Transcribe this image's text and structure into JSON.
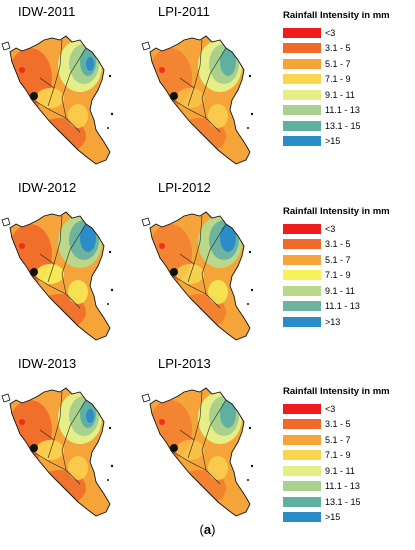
{
  "rows": [
    {
      "maps": [
        {
          "title": "IDW-2011",
          "variant": "idw"
        },
        {
          "title": "LPI-2011",
          "variant": "lpi"
        }
      ],
      "legend": {
        "title": "Rainfall Intensity in mm",
        "items": [
          {
            "label": "<3",
            "color": "#ee1c1c"
          },
          {
            "label": "3.1 - 5",
            "color": "#f06a2a"
          },
          {
            "label": "5.1 - 7",
            "color": "#f5a43a"
          },
          {
            "label": "7.1 - 9",
            "color": "#fbd450"
          },
          {
            "label": "9.1 - 11",
            "color": "#e6ee88"
          },
          {
            "label": "11.1 - 13",
            "color": "#a9d08c"
          },
          {
            "label": "13.1 - 15",
            "color": "#5fb0a0"
          },
          {
            "label": ">15",
            "color": "#2b8dc8"
          }
        ]
      }
    },
    {
      "maps": [
        {
          "title": "IDW-2012",
          "variant": "idw"
        },
        {
          "title": "LPI-2012",
          "variant": "lpi"
        }
      ],
      "legend": {
        "title": "Rainfall Intensity in mm",
        "items": [
          {
            "label": "<3",
            "color": "#ee1c1c"
          },
          {
            "label": "3.1 - 5",
            "color": "#f06a2a"
          },
          {
            "label": "5.1 - 7",
            "color": "#f5a43a"
          },
          {
            "label": "7.1 - 9",
            "color": "#f6f05a"
          },
          {
            "label": "9.1 - 11",
            "color": "#b9d88a"
          },
          {
            "label": "11.1 - 13",
            "color": "#6cb4a0"
          },
          {
            "label": ">13",
            "color": "#2b8dc8"
          }
        ]
      }
    },
    {
      "maps": [
        {
          "title": "IDW-2013",
          "variant": "idw"
        },
        {
          "title": "LPI-2013",
          "variant": "lpi"
        }
      ],
      "legend": {
        "title": "Rainfall Intensity in mm",
        "items": [
          {
            "label": "<3",
            "color": "#ee1c1c"
          },
          {
            "label": "3.1 - 5",
            "color": "#f06a2a"
          },
          {
            "label": "5.1 - 7",
            "color": "#f5a43a"
          },
          {
            "label": "7.1 - 9",
            "color": "#fbd450"
          },
          {
            "label": "9.1 - 11",
            "color": "#e6ee88"
          },
          {
            "label": "11.1 - 13",
            "color": "#a9d08c"
          },
          {
            "label": "13.1 - 15",
            "color": "#5fb0a0"
          },
          {
            "label": ">15",
            "color": "#2b8dc8"
          }
        ]
      }
    }
  ],
  "caption": {
    "open": "(",
    "letter": "a",
    "close": ")"
  }
}
